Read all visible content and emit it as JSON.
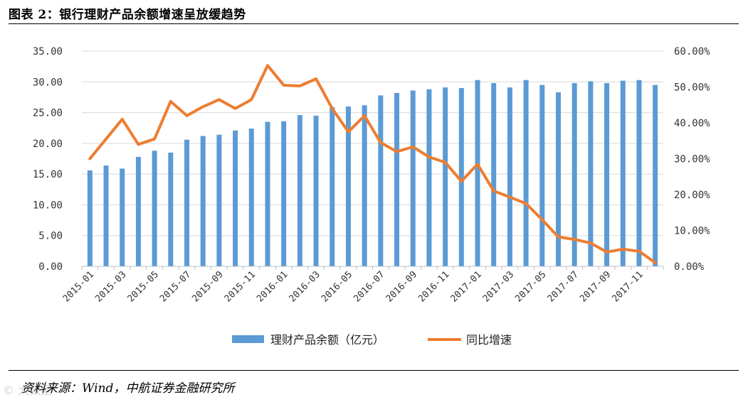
{
  "figure": {
    "title": "图表 2：银行理财产品余额增速呈放缓趋势",
    "source": "资料来源：Wind，中航证券金融研究所",
    "watermark": "© 大数据"
  },
  "chart_data": {
    "type": "bar+line",
    "categories": [
      "2015-01",
      "2015-02",
      "2015-03",
      "2015-04",
      "2015-05",
      "2015-06",
      "2015-07",
      "2015-08",
      "2015-09",
      "2015-10",
      "2015-11",
      "2015-12",
      "2016-01",
      "2016-02",
      "2016-03",
      "2016-04",
      "2016-05",
      "2016-06",
      "2016-07",
      "2016-08",
      "2016-09",
      "2016-10",
      "2016-11",
      "2016-12",
      "2017-01",
      "2017-02",
      "2017-03",
      "2017-04",
      "2017-05",
      "2017-06",
      "2017-07",
      "2017-08",
      "2017-09",
      "2017-10",
      "2017-11",
      "2017-12"
    ],
    "x_tick_labels": [
      "2015-01",
      "2015-03",
      "2015-05",
      "2015-07",
      "2015-09",
      "2015-11",
      "2016-01",
      "2016-03",
      "2016-05",
      "2016-07",
      "2016-09",
      "2016-11",
      "2017-01",
      "2017-03",
      "2017-05",
      "2017-07",
      "2017-09",
      "2017-11"
    ],
    "series": [
      {
        "name": "理财产品余额（亿元）",
        "type": "bar",
        "axis": "left",
        "color": "#5b9bd5",
        "values": [
          15.6,
          16.4,
          15.9,
          17.8,
          18.8,
          18.5,
          20.6,
          21.2,
          21.4,
          22.1,
          22.4,
          23.5,
          23.6,
          24.6,
          24.5,
          25.9,
          26.0,
          26.2,
          27.8,
          28.2,
          28.6,
          28.8,
          29.1,
          29.0,
          30.3,
          29.8,
          29.1,
          30.3,
          29.5,
          28.3,
          29.8,
          30.1,
          29.8,
          30.2,
          30.3,
          29.5
        ]
      },
      {
        "name": "同比增速",
        "type": "line",
        "axis": "right",
        "color": "#ed7d31",
        "values": [
          30.0,
          35.5,
          41.0,
          34.0,
          35.5,
          46.0,
          42.0,
          44.5,
          46.5,
          44.0,
          46.5,
          56.0,
          50.5,
          50.3,
          52.3,
          44.0,
          37.5,
          42.0,
          34.5,
          32.0,
          33.3,
          30.5,
          29.0,
          23.7,
          28.5,
          21.0,
          19.3,
          17.5,
          13.0,
          8.2,
          7.5,
          6.5,
          4.0,
          4.8,
          4.2,
          1.0
        ]
      }
    ],
    "y_left": {
      "ticks": [
        "0.00",
        "5.00",
        "10.00",
        "15.00",
        "20.00",
        "25.00",
        "30.00",
        "35.00"
      ],
      "range": [
        0,
        35
      ]
    },
    "y_right": {
      "ticks": [
        "0.00%",
        "10.00%",
        "20.00%",
        "30.00%",
        "40.00%",
        "50.00%",
        "60.00%"
      ],
      "range": [
        0,
        60
      ]
    },
    "grid": true,
    "legend": {
      "position": "bottom"
    }
  }
}
